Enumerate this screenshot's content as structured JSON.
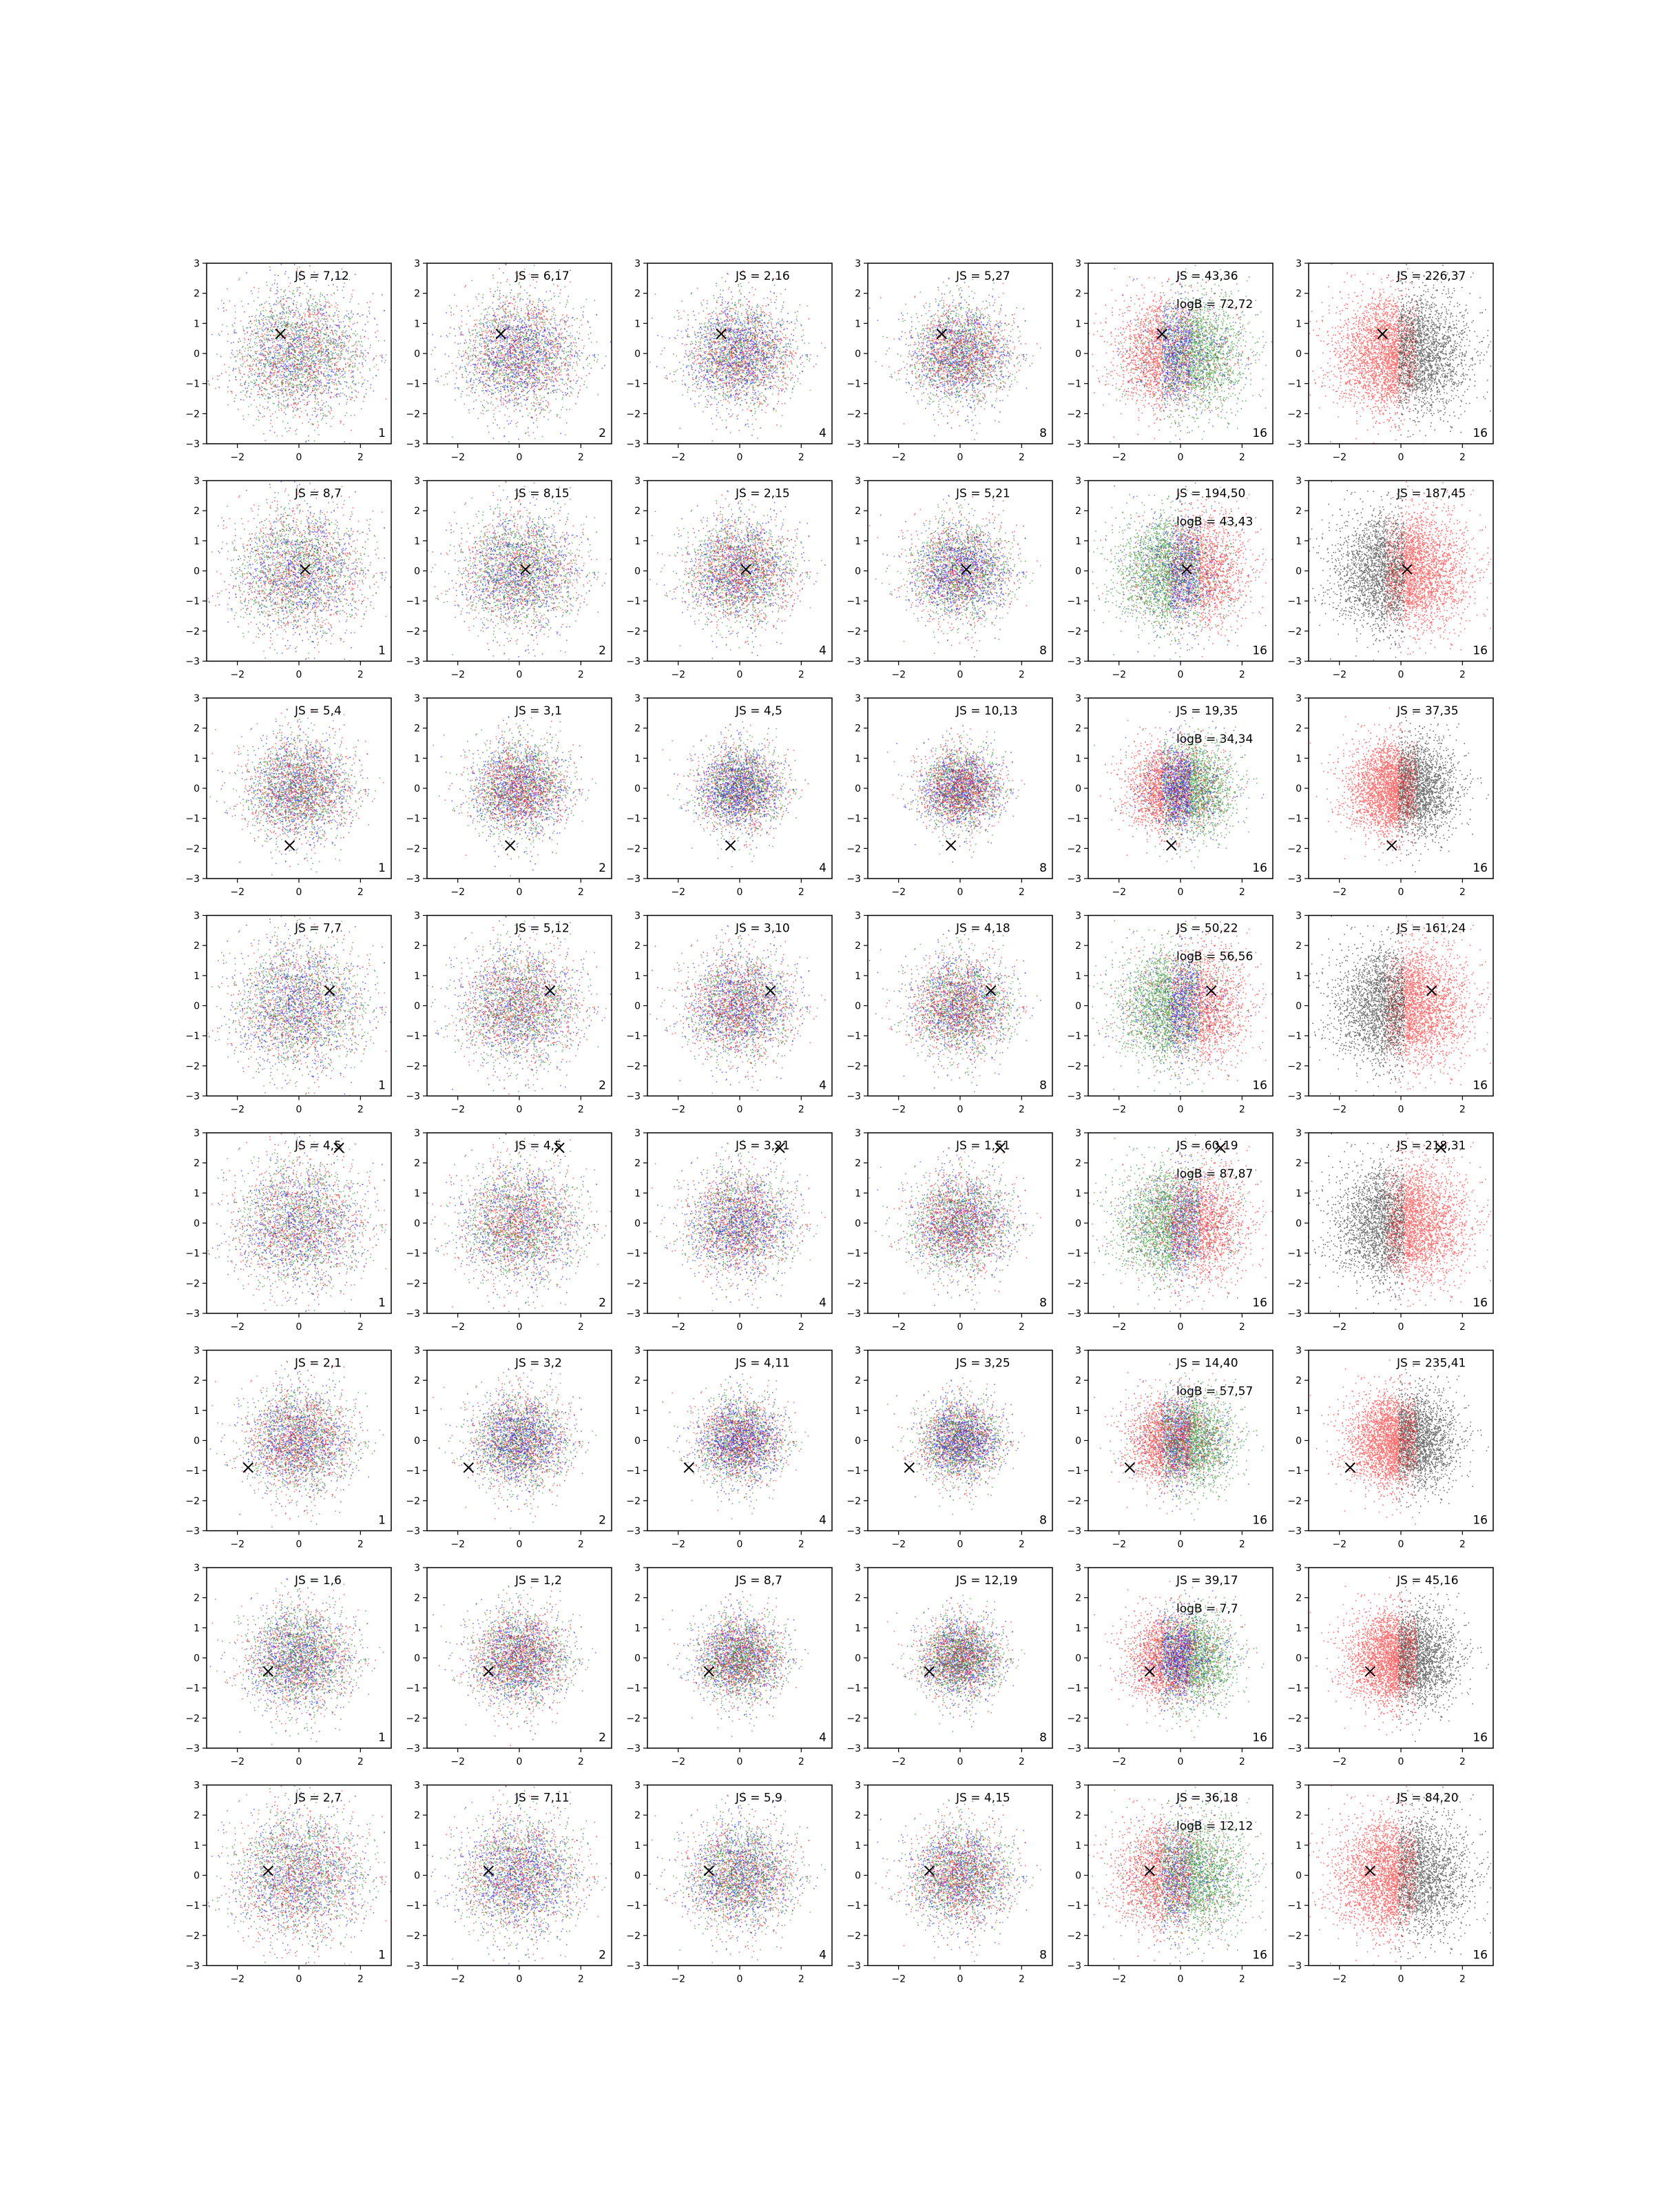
{
  "figure": {
    "layout": {
      "rows": 8,
      "cols": 6
    },
    "colors": {
      "red": "#ff0000",
      "green": "#008000",
      "blue": "#0000ff",
      "black": "#000000",
      "frame": "#000000"
    }
  },
  "chart_data": {
    "type": "scatter",
    "xlim": [
      -3,
      3
    ],
    "ylim": [
      -3,
      3
    ],
    "xticks": [
      "−2",
      "0",
      "2"
    ],
    "yticks": [
      "3",
      "2",
      "1",
      "0",
      "−1",
      "−2",
      "−3"
    ],
    "marker": "x",
    "grid": false,
    "rows": [
      {
        "marker": [
          -0.6,
          0.65
        ],
        "panels": [
          {
            "count": "1",
            "js": "JS = 7,12"
          },
          {
            "count": "2",
            "js": "JS = 6,17"
          },
          {
            "count": "4",
            "js": "JS = 2,16"
          },
          {
            "count": "8",
            "js": "JS = 5,27"
          },
          {
            "count": "16",
            "js": "JS = 43,36",
            "logb": "logB = 72,72"
          },
          {
            "count": "16",
            "js": "JS = 226,37"
          }
        ]
      },
      {
        "marker": [
          0.2,
          0.05
        ],
        "panels": [
          {
            "count": "1",
            "js": "JS = 8,7"
          },
          {
            "count": "2",
            "js": "JS = 8,15"
          },
          {
            "count": "4",
            "js": "JS = 2,15"
          },
          {
            "count": "8",
            "js": "JS = 5,21"
          },
          {
            "count": "16",
            "js": "JS = 194,50",
            "logb": "logB = 43,43"
          },
          {
            "count": "16",
            "js": "JS = 187,45"
          }
        ]
      },
      {
        "marker": [
          -0.3,
          -1.9
        ],
        "panels": [
          {
            "count": "1",
            "js": "JS = 5,4"
          },
          {
            "count": "2",
            "js": "JS = 3,1"
          },
          {
            "count": "4",
            "js": "JS = 4,5"
          },
          {
            "count": "8",
            "js": "JS = 10,13"
          },
          {
            "count": "16",
            "js": "JS = 19,35",
            "logb": "logB = 34,34"
          },
          {
            "count": "16",
            "js": "JS = 37,35"
          }
        ]
      },
      {
        "marker": [
          1.0,
          0.5
        ],
        "panels": [
          {
            "count": "1",
            "js": "JS = 7,7"
          },
          {
            "count": "2",
            "js": "JS = 5,12"
          },
          {
            "count": "4",
            "js": "JS = 3,10"
          },
          {
            "count": "8",
            "js": "JS = 4,18"
          },
          {
            "count": "16",
            "js": "JS = 50,22",
            "logb": "logB = 56,56"
          },
          {
            "count": "16",
            "js": "JS = 161,24"
          }
        ]
      },
      {
        "marker": [
          1.3,
          2.5
        ],
        "panels": [
          {
            "count": "1",
            "js": "JS = 4,5"
          },
          {
            "count": "2",
            "js": "JS = 4,5"
          },
          {
            "count": "4",
            "js": "JS = 3,21"
          },
          {
            "count": "8",
            "js": "JS = 1,51"
          },
          {
            "count": "16",
            "js": "JS = 60,19",
            "logb": "logB = 87,87"
          },
          {
            "count": "16",
            "js": "JS = 218,31"
          }
        ]
      },
      {
        "marker": [
          -1.65,
          -0.9
        ],
        "panels": [
          {
            "count": "1",
            "js": "JS = 2,1"
          },
          {
            "count": "2",
            "js": "JS = 3,2"
          },
          {
            "count": "4",
            "js": "JS = 4,11"
          },
          {
            "count": "8",
            "js": "JS = 3,25"
          },
          {
            "count": "16",
            "js": "JS = 14,40",
            "logb": "logB = 57,57"
          },
          {
            "count": "16",
            "js": "JS = 235,41"
          }
        ]
      },
      {
        "marker": [
          -1.0,
          -0.45
        ],
        "panels": [
          {
            "count": "1",
            "js": "JS = 1,6"
          },
          {
            "count": "2",
            "js": "JS = 1,2"
          },
          {
            "count": "4",
            "js": "JS = 8,7"
          },
          {
            "count": "8",
            "js": "JS = 12,19"
          },
          {
            "count": "16",
            "js": "JS = 39,17",
            "logb": "logB = 7,7"
          },
          {
            "count": "16",
            "js": "JS = 45,16"
          }
        ]
      },
      {
        "marker": [
          -1.0,
          0.15
        ],
        "panels": [
          {
            "count": "1",
            "js": "JS = 2,7"
          },
          {
            "count": "2",
            "js": "JS = 7,11"
          },
          {
            "count": "4",
            "js": "JS = 5,9"
          },
          {
            "count": "8",
            "js": "JS = 4,15"
          },
          {
            "count": "16",
            "js": "JS = 36,18",
            "logb": "logB = 12,12"
          },
          {
            "count": "16",
            "js": "JS = 84,20"
          }
        ]
      }
    ]
  }
}
